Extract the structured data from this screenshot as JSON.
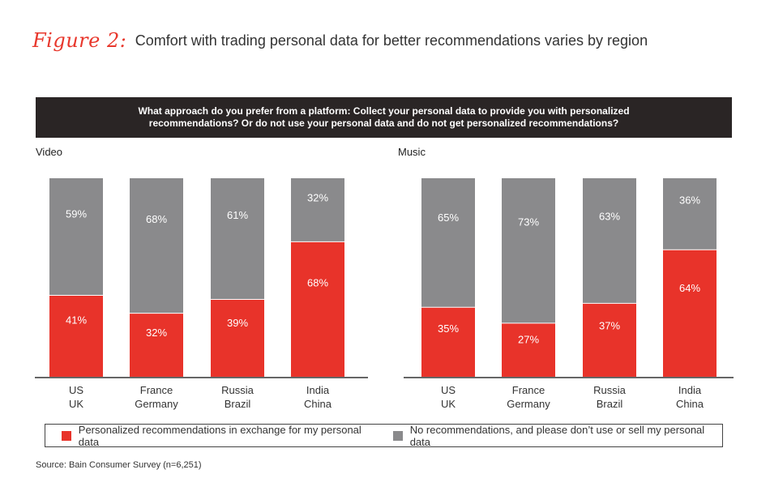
{
  "figure_label": "Figure 2:",
  "title": "Comfort with trading personal data for better recommendations varies by region",
  "question_line1": "What approach do you prefer from a platform: Collect your personal data to provide you with personalized",
  "question_line2": "recommendations? Or do not use your personal data and do not get personalized recommendations?",
  "legend": {
    "personalized": "Personalized recommendations in exchange for my personal data",
    "no_recs": "No recommendations, and please don’t use or sell my personal data"
  },
  "source": "Source: Bain Consumer Survey (n=6,251)",
  "colors": {
    "personalized": "#e8332a",
    "no_recs": "#8a8a8c"
  },
  "chart_data": [
    {
      "type": "bar",
      "stacked": true,
      "title": "Video",
      "categories": [
        [
          "US",
          "UK"
        ],
        [
          "France",
          "Germany"
        ],
        [
          "Russia",
          "Brazil"
        ],
        [
          "India",
          "China"
        ]
      ],
      "series": [
        {
          "name": "Personalized recommendations in exchange for my personal data",
          "values": [
            41,
            32,
            39,
            68
          ]
        },
        {
          "name": "No recommendations, and please don’t use or sell my personal data",
          "values": [
            59,
            68,
            61,
            32
          ]
        }
      ],
      "ylim": [
        0,
        100
      ]
    },
    {
      "type": "bar",
      "stacked": true,
      "title": "Music",
      "categories": [
        [
          "US",
          "UK"
        ],
        [
          "France",
          "Germany"
        ],
        [
          "Russia",
          "Brazil"
        ],
        [
          "India",
          "China"
        ]
      ],
      "series": [
        {
          "name": "Personalized recommendations in exchange for my personal data",
          "values": [
            35,
            27,
            37,
            64
          ]
        },
        {
          "name": "No recommendations, and please don’t use or sell my personal data",
          "values": [
            65,
            73,
            63,
            36
          ]
        }
      ],
      "ylim": [
        0,
        100
      ]
    }
  ]
}
